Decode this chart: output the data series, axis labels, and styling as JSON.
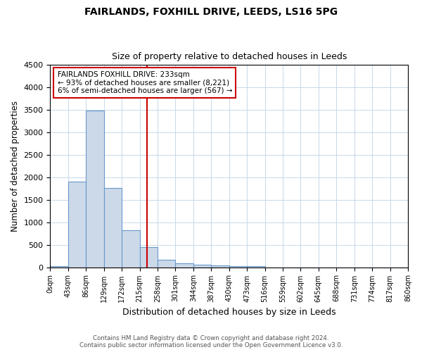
{
  "title1": "FAIRLANDS, FOXHILL DRIVE, LEEDS, LS16 5PG",
  "title2": "Size of property relative to detached houses in Leeds",
  "xlabel": "Distribution of detached houses by size in Leeds",
  "ylabel": "Number of detached properties",
  "bin_labels": [
    "0sqm",
    "43sqm",
    "86sqm",
    "129sqm",
    "172sqm",
    "215sqm",
    "258sqm",
    "301sqm",
    "344sqm",
    "387sqm",
    "430sqm",
    "473sqm",
    "516sqm",
    "559sqm",
    "602sqm",
    "645sqm",
    "688sqm",
    "731sqm",
    "774sqm",
    "817sqm",
    "860sqm"
  ],
  "bin_edges": [
    0,
    43,
    86,
    129,
    172,
    215,
    258,
    301,
    344,
    387,
    430,
    473,
    516,
    559,
    602,
    645,
    688,
    731,
    774,
    817,
    860
  ],
  "bar_heights": [
    30,
    1900,
    3490,
    1760,
    830,
    450,
    160,
    90,
    55,
    40,
    25,
    20,
    0,
    0,
    0,
    0,
    0,
    0,
    0,
    0
  ],
  "bar_color": "#ccd9e8",
  "bar_edgecolor": "#6699cc",
  "property_size": 233,
  "vline_color": "#cc0000",
  "ylim": [
    0,
    4500
  ],
  "annotation_line1": "FAIRLANDS FOXHILL DRIVE: 233sqm",
  "annotation_line2": "← 93% of detached houses are smaller (8,221)",
  "annotation_line3": "6% of semi-detached houses are larger (567) →",
  "annotation_box_color": "#cc0000",
  "footnote": "Contains HM Land Registry data © Crown copyright and database right 2024.\nContains public sector information licensed under the Open Government Licence v3.0.",
  "background_color": "#ffffff",
  "grid_color": "#c8d8e8"
}
